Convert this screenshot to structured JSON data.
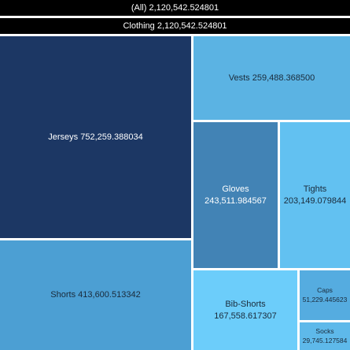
{
  "chart_data": {
    "type": "treemap",
    "root": {
      "label": "(All)",
      "value": "2,120,542.524801"
    },
    "group": {
      "label": "Clothing",
      "value": "2,120,542.524801"
    },
    "items": [
      {
        "id": "jerseys",
        "label": "Jerseys",
        "value": "752,259.388034",
        "color": "#1c3764",
        "text_color": "#ffffff",
        "stacked": false
      },
      {
        "id": "vests",
        "label": "Vests",
        "value": "259,488.368500",
        "color": "#5bb3e3",
        "text_color": "#1a2a3a",
        "stacked": false
      },
      {
        "id": "gloves",
        "label": "Gloves",
        "value": "243,511.984567",
        "color": "#4283b5",
        "text_color": "#ffffff",
        "stacked": true
      },
      {
        "id": "tights",
        "label": "Tights",
        "value": "203,149.079844",
        "color": "#62c1f1",
        "text_color": "#1a2a3a",
        "stacked": true
      },
      {
        "id": "shorts",
        "label": "Shorts",
        "value": "413,600.513342",
        "color": "#4c9fd3",
        "text_color": "#1a2a3a",
        "stacked": false
      },
      {
        "id": "bib-shorts",
        "label": "Bib-Shorts",
        "value": "167,558.617307",
        "color": "#6ccdfa",
        "text_color": "#1a2a3a",
        "stacked": false
      },
      {
        "id": "caps",
        "label": "Caps",
        "value": "51,229.445623",
        "color": "#55ace0",
        "text_color": "#1a2a3a",
        "stacked": true
      },
      {
        "id": "socks",
        "label": "Socks",
        "value": "29,745.127584",
        "color": "#5eb9ea",
        "text_color": "#1a2a3a",
        "stacked": true
      }
    ]
  }
}
